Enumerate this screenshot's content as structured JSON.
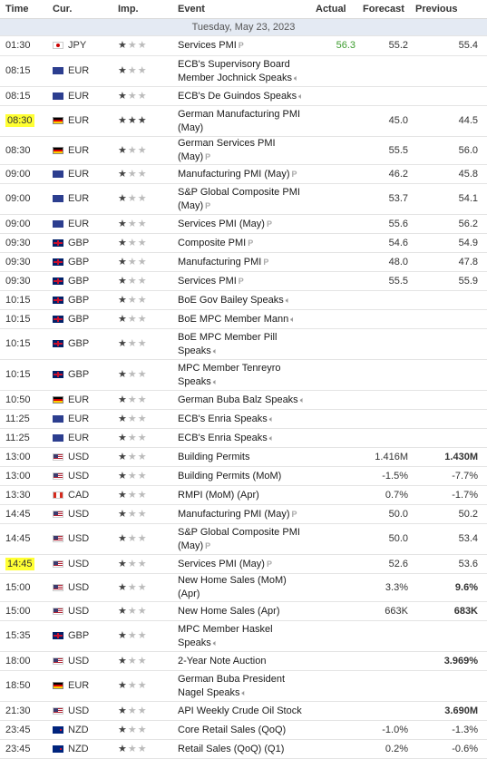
{
  "headers": {
    "time": "Time",
    "cur": "Cur.",
    "imp": "Imp.",
    "event": "Event",
    "actual": "Actual",
    "forecast": "Forecast",
    "previous": "Previous"
  },
  "date": "Tuesday, May 23, 2023",
  "rows": [
    {
      "time": "01:30",
      "flag": "jpy",
      "cur": "JPY",
      "imp": 1,
      "event": "Services PMI",
      "icon": "pre",
      "actual": "56.3",
      "actual_color": "good",
      "forecast": "55.2",
      "previous": "55.4",
      "prev_bold": false,
      "h": 22,
      "hl": false
    },
    {
      "time": "08:15",
      "flag": "eur",
      "cur": "EUR",
      "imp": 1,
      "event": "ECB's Supervisory Board Member Jochnick Speaks",
      "icon": "speak",
      "actual": "",
      "forecast": "",
      "previous": "",
      "h": 34,
      "hl": false
    },
    {
      "time": "08:15",
      "flag": "eur",
      "cur": "EUR",
      "imp": 1,
      "event": "ECB's De Guindos Speaks",
      "icon": "speak",
      "actual": "",
      "forecast": "",
      "previous": "",
      "h": 21,
      "hl": false
    },
    {
      "time": "08:30",
      "flag": "deu",
      "cur": "EUR",
      "imp": 3,
      "event": "German Manufacturing PMI (May)",
      "icon": "",
      "actual": "",
      "forecast": "45.0",
      "previous": "44.5",
      "h": 34,
      "hl": true
    },
    {
      "time": "08:30",
      "flag": "deu",
      "cur": "EUR",
      "imp": 1,
      "event": "German Services PMI (May)",
      "icon": "pre",
      "actual": "",
      "forecast": "55.5",
      "previous": "56.0",
      "h": 21,
      "hl": false
    },
    {
      "time": "09:00",
      "flag": "eur",
      "cur": "EUR",
      "imp": 1,
      "event": "Manufacturing PMI (May)",
      "icon": "pre",
      "actual": "",
      "forecast": "46.2",
      "previous": "45.8",
      "h": 21,
      "hl": false
    },
    {
      "time": "09:00",
      "flag": "eur",
      "cur": "EUR",
      "imp": 1,
      "event": "S&P Global Composite PMI (May)",
      "icon": "pre",
      "actual": "",
      "forecast": "53.7",
      "previous": "54.1",
      "h": 34,
      "hl": false
    },
    {
      "time": "09:00",
      "flag": "eur",
      "cur": "EUR",
      "imp": 1,
      "event": "Services PMI (May)",
      "icon": "pre",
      "actual": "",
      "forecast": "55.6",
      "previous": "56.2",
      "h": 21,
      "hl": false
    },
    {
      "time": "09:30",
      "flag": "gbp",
      "cur": "GBP",
      "imp": 1,
      "event": "Composite PMI",
      "icon": "pre",
      "actual": "",
      "forecast": "54.6",
      "previous": "54.9",
      "h": 21,
      "hl": false
    },
    {
      "time": "09:30",
      "flag": "gbp",
      "cur": "GBP",
      "imp": 1,
      "event": "Manufacturing PMI",
      "icon": "pre",
      "actual": "",
      "forecast": "48.0",
      "previous": "47.8",
      "h": 21,
      "hl": false
    },
    {
      "time": "09:30",
      "flag": "gbp",
      "cur": "GBP",
      "imp": 1,
      "event": "Services PMI",
      "icon": "pre",
      "actual": "",
      "forecast": "55.5",
      "previous": "55.9",
      "h": 21,
      "hl": false
    },
    {
      "time": "10:15",
      "flag": "gbp",
      "cur": "GBP",
      "imp": 1,
      "event": "BoE Gov Bailey Speaks",
      "icon": "speak",
      "actual": "",
      "forecast": "",
      "previous": "",
      "h": 21,
      "hl": false
    },
    {
      "time": "10:15",
      "flag": "gbp",
      "cur": "GBP",
      "imp": 1,
      "event": "BoE MPC Member Mann",
      "icon": "speak",
      "actual": "",
      "forecast": "",
      "previous": "",
      "h": 21,
      "hl": false
    },
    {
      "time": "10:15",
      "flag": "gbp",
      "cur": "GBP",
      "imp": 1,
      "event": "BoE MPC Member Pill Speaks",
      "icon": "speak",
      "actual": "",
      "forecast": "",
      "previous": "",
      "h": 34,
      "hl": false
    },
    {
      "time": "10:15",
      "flag": "gbp",
      "cur": "GBP",
      "imp": 1,
      "event": "MPC Member Tenreyro Speaks",
      "icon": "speak",
      "actual": "",
      "forecast": "",
      "previous": "",
      "h": 34,
      "hl": false
    },
    {
      "time": "10:50",
      "flag": "deu",
      "cur": "EUR",
      "imp": 1,
      "event": "German Buba Balz Speaks",
      "icon": "speak",
      "actual": "",
      "forecast": "",
      "previous": "",
      "h": 21,
      "hl": false
    },
    {
      "time": "11:25",
      "flag": "eur",
      "cur": "EUR",
      "imp": 1,
      "event": "ECB's Enria Speaks",
      "icon": "speak",
      "actual": "",
      "forecast": "",
      "previous": "",
      "h": 21,
      "hl": false
    },
    {
      "time": "11:25",
      "flag": "eur",
      "cur": "EUR",
      "imp": 1,
      "event": "ECB's Enria Speaks",
      "icon": "speak",
      "actual": "",
      "forecast": "",
      "previous": "",
      "h": 21,
      "hl": false
    },
    {
      "time": "13:00",
      "flag": "usd",
      "cur": "USD",
      "imp": 1,
      "event": "Building Permits",
      "icon": "",
      "actual": "",
      "forecast": "1.416M",
      "previous": "1.430M",
      "prev_bold": true,
      "h": 21,
      "hl": false
    },
    {
      "time": "13:00",
      "flag": "usd",
      "cur": "USD",
      "imp": 1,
      "event": "Building Permits (MoM)",
      "icon": "",
      "actual": "",
      "forecast": "-1.5%",
      "previous": "-7.7%",
      "h": 21,
      "hl": false
    },
    {
      "time": "13:30",
      "flag": "cad",
      "cur": "CAD",
      "imp": 1,
      "event": "RMPI (MoM) (Apr)",
      "icon": "",
      "actual": "",
      "forecast": "0.7%",
      "previous": "-1.7%",
      "h": 21,
      "hl": false
    },
    {
      "time": "14:45",
      "flag": "usd",
      "cur": "USD",
      "imp": 1,
      "event": "Manufacturing PMI (May)",
      "icon": "pre",
      "actual": "",
      "forecast": "50.0",
      "previous": "50.2",
      "h": 21,
      "hl": false
    },
    {
      "time": "14:45",
      "flag": "usd",
      "cur": "USD",
      "imp": 1,
      "event": "S&P Global Composite PMI (May)",
      "icon": "pre",
      "actual": "",
      "forecast": "50.0",
      "previous": "53.4",
      "h": 34,
      "hl": false
    },
    {
      "time": "14:45",
      "flag": "usd",
      "cur": "USD",
      "imp": 1,
      "event": "Services PMI (May)",
      "icon": "pre",
      "actual": "",
      "forecast": "52.6",
      "previous": "53.6",
      "h": 21,
      "hl": true
    },
    {
      "time": "15:00",
      "flag": "usd",
      "cur": "USD",
      "imp": 1,
      "event": "New Home Sales (MoM) (Apr)",
      "icon": "",
      "actual": "",
      "forecast": "3.3%",
      "previous": "9.6%",
      "prev_bold": true,
      "h": 21,
      "hl": false
    },
    {
      "time": "15:00",
      "flag": "usd",
      "cur": "USD",
      "imp": 1,
      "event": "New Home Sales (Apr)",
      "icon": "",
      "actual": "",
      "forecast": "663K",
      "previous": "683K",
      "prev_bold": true,
      "h": 21,
      "hl": false
    },
    {
      "time": "15:35",
      "flag": "gbp",
      "cur": "GBP",
      "imp": 1,
      "event": "MPC Member Haskel Speaks",
      "icon": "speak",
      "actual": "",
      "forecast": "",
      "previous": "",
      "h": 34,
      "hl": false
    },
    {
      "time": "18:00",
      "flag": "usd",
      "cur": "USD",
      "imp": 1,
      "event": "2-Year Note Auction",
      "icon": "",
      "actual": "",
      "forecast": "",
      "previous": "3.969%",
      "prev_bold": true,
      "h": 21,
      "hl": false
    },
    {
      "time": "18:50",
      "flag": "deu",
      "cur": "EUR",
      "imp": 1,
      "event": "German Buba President Nagel Speaks",
      "icon": "speak",
      "actual": "",
      "forecast": "",
      "previous": "",
      "h": 34,
      "hl": false
    },
    {
      "time": "21:30",
      "flag": "usd",
      "cur": "USD",
      "imp": 1,
      "event": "API Weekly Crude Oil Stock",
      "icon": "",
      "actual": "",
      "forecast": "",
      "previous": "3.690M",
      "prev_bold": true,
      "h": 21,
      "hl": false
    },
    {
      "time": "23:45",
      "flag": "nzd",
      "cur": "NZD",
      "imp": 1,
      "event": "Core Retail Sales (QoQ)",
      "icon": "",
      "actual": "",
      "forecast": "-1.0%",
      "previous": "-1.3%",
      "h": 21,
      "hl": false
    },
    {
      "time": "23:45",
      "flag": "nzd",
      "cur": "NZD",
      "imp": 1,
      "event": "Retail Sales (QoQ) (Q1)",
      "icon": "",
      "actual": "",
      "forecast": "0.2%",
      "previous": "-0.6%",
      "h": 21,
      "hl": false
    }
  ]
}
